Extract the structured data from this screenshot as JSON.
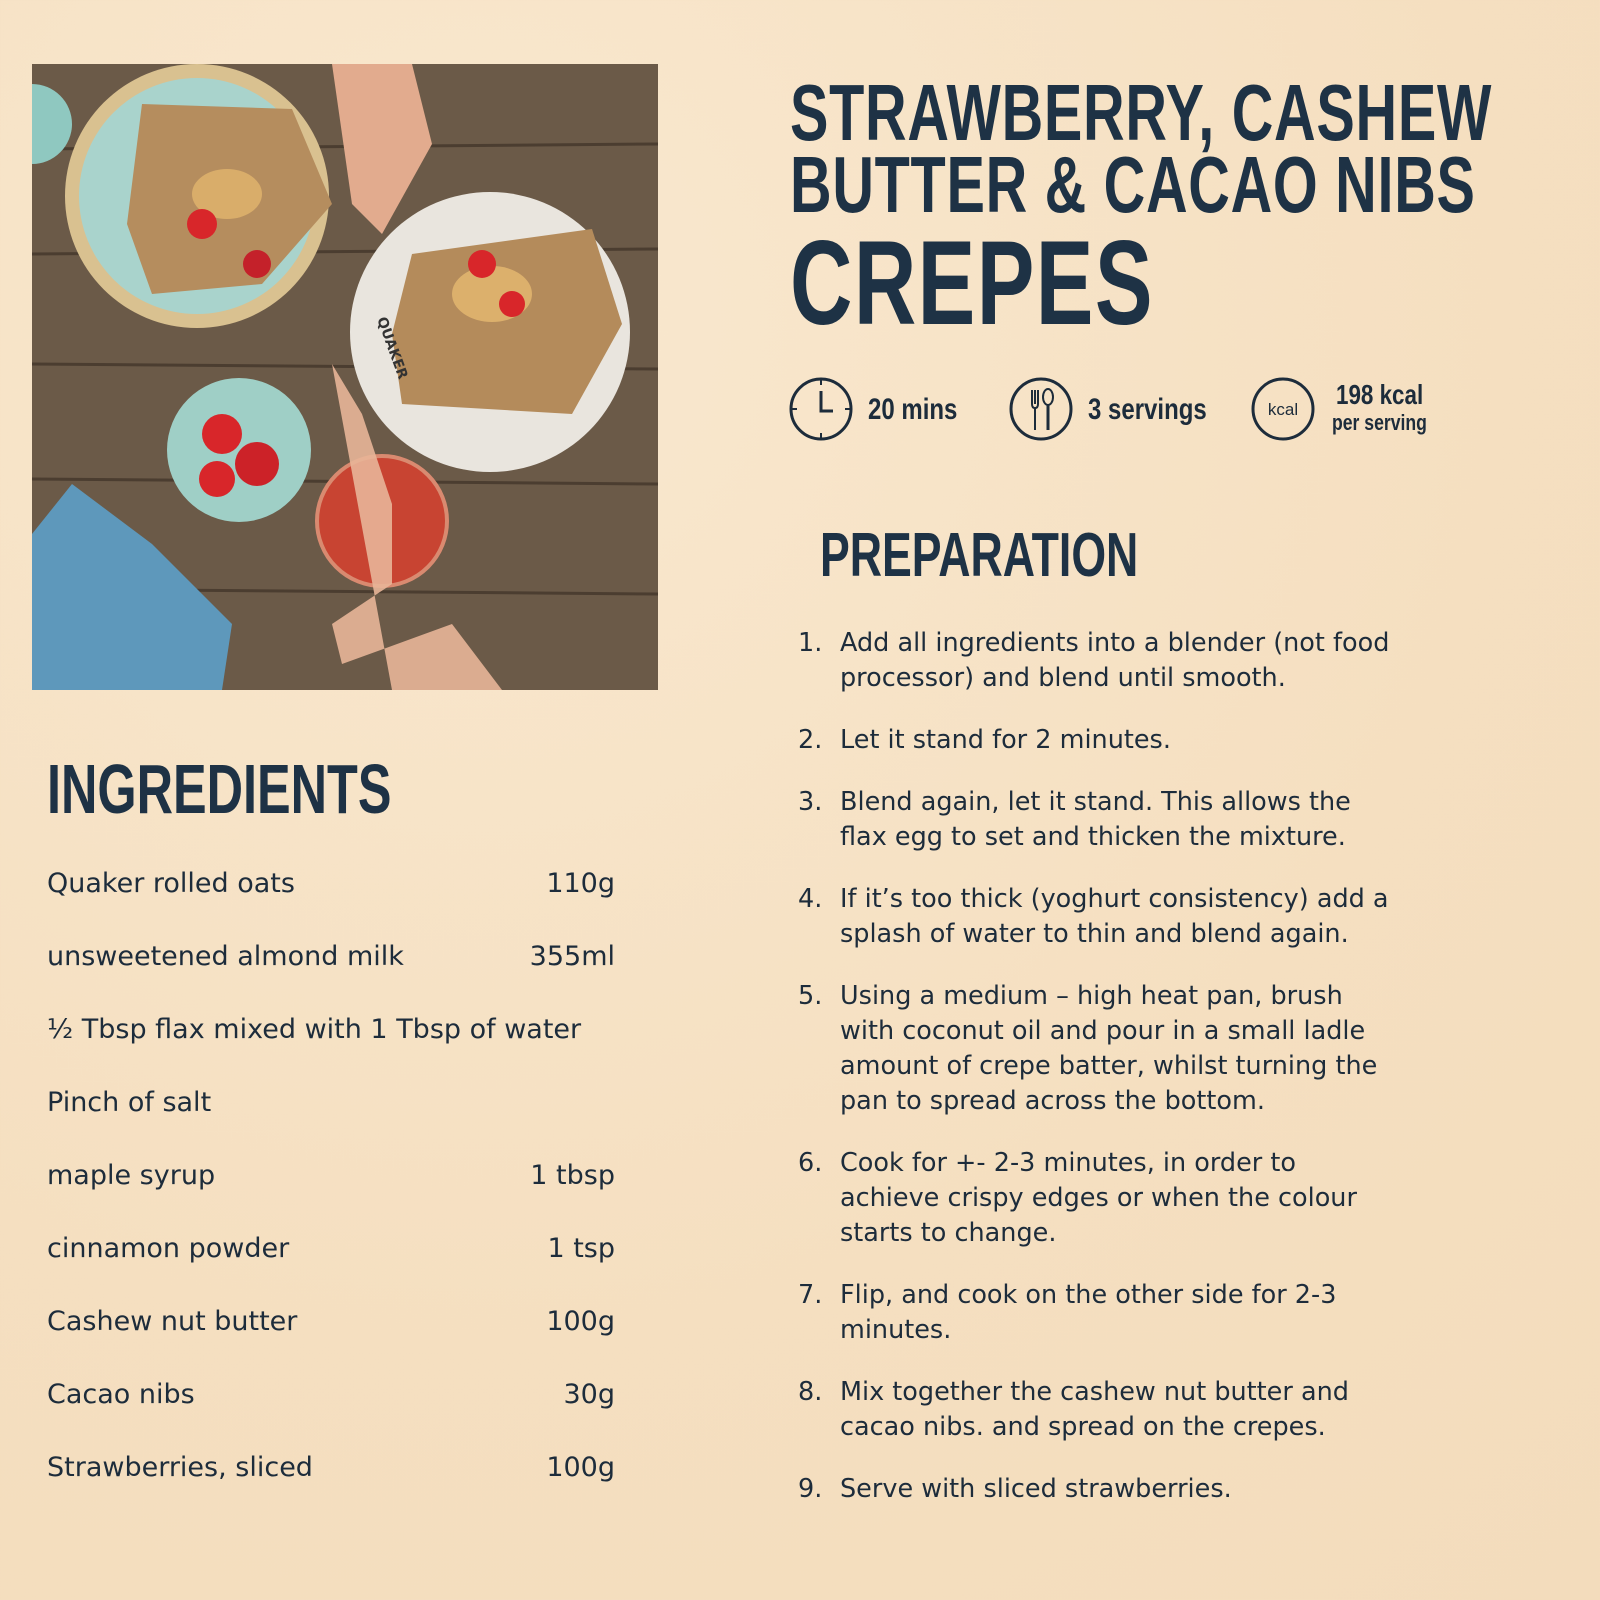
{
  "title": {
    "line1": "STRAWBERRY, CASHEW",
    "line2": "BUTTER & CACAO NIBS",
    "line3": "CREPES"
  },
  "meta": {
    "time": {
      "icon": "clock-icon",
      "label": "20 mins"
    },
    "servings": {
      "icon": "cutlery-icon",
      "label": "3 servings"
    },
    "calories": {
      "icon": "kcal-icon",
      "icon_text": "kcal",
      "label": "198 kcal",
      "sub": "per serving"
    }
  },
  "photo": {
    "brand_text": "QUAKER"
  },
  "ingredients": {
    "heading": "INGREDIENTS",
    "items": [
      {
        "name": "Quaker rolled oats",
        "amount": "110g"
      },
      {
        "name": "unsweetened almond milk",
        "amount": "355ml"
      },
      {
        "name": "½ Tbsp flax mixed with 1 Tbsp of water",
        "amount": ""
      },
      {
        "name": "Pinch of salt",
        "amount": ""
      },
      {
        "name": "maple syrup",
        "amount": "1 tbsp"
      },
      {
        "name": "cinnamon powder",
        "amount": "1 tsp"
      },
      {
        "name": "Cashew nut butter",
        "amount": "100g"
      },
      {
        "name": "Cacao nibs",
        "amount": "30g"
      },
      {
        "name": "Strawberries, sliced",
        "amount": "100g"
      }
    ]
  },
  "preparation": {
    "heading": "PREPARATION",
    "steps": [
      {
        "n": "1.",
        "text": "Add all ingredients into a blender (not food processor) and blend until smooth."
      },
      {
        "n": "2.",
        "text": "Let it stand for 2 minutes."
      },
      {
        "n": "3.",
        "text": "Blend again, let it stand. This allows the flax egg to set and thicken the mixture."
      },
      {
        "n": "4.",
        "text": "If it’s too thick (yoghurt consistency) add a splash of water to thin and blend again."
      },
      {
        "n": "5.",
        "text": "Using a medium – high heat pan, brush with coconut oil and pour in a small ladle amount of crepe batter, whilst turning the pan to spread across the bottom."
      },
      {
        "n": "6.",
        "text": "Cook for +- 2-3 minutes, in order to achieve crispy edges or when the colour starts to change."
      },
      {
        "n": "7.",
        "text": "Flip, and cook on the other side for 2-3 minutes."
      },
      {
        "n": "8.",
        "text": "Mix together the cashew nut butter and cacao nibs. and spread on the crepes."
      },
      {
        "n": "9.",
        "text": "Serve with sliced strawberries."
      }
    ]
  },
  "colors": {
    "background": "#f6e3c6",
    "heading": "#1e3245",
    "text": "#1d2c3b"
  }
}
